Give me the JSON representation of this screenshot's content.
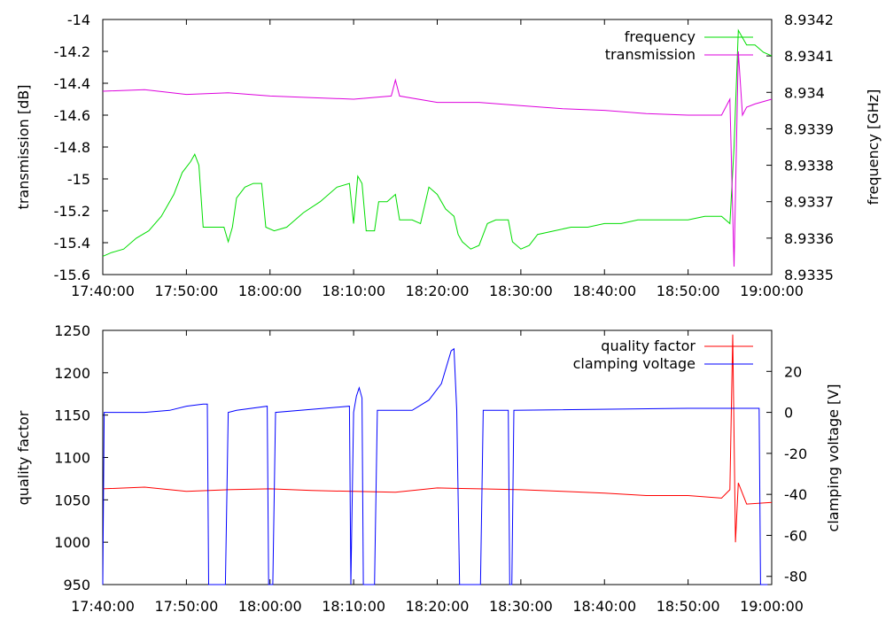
{
  "chart_data": [
    {
      "type": "line",
      "xlabel": "",
      "ylabel": "transmission [dB]",
      "y2label": "frequency [GHz]",
      "xlim": [
        "17:40:00",
        "19:00:00"
      ],
      "ylim": [
        -15.6,
        -14.0
      ],
      "y2lim": [
        8.9335,
        8.9342
      ],
      "x_ticks": [
        "17:40:00",
        "17:50:00",
        "18:00:00",
        "18:10:00",
        "18:20:00",
        "18:30:00",
        "18:40:00",
        "18:50:00",
        "19:00:00"
      ],
      "y_ticks": [
        "-14",
        "-14.2",
        "-14.4",
        "-14.6",
        "-14.8",
        "-15",
        "-15.2",
        "-15.4",
        "-15.6"
      ],
      "y2_ticks": [
        "8.9342",
        "8.9341",
        "8.934",
        "8.9339",
        "8.9338",
        "8.9337",
        "8.9336",
        "8.9335"
      ],
      "legend": "top-right",
      "grid": false,
      "series": [
        {
          "name": "frequency",
          "color": "#00dd00",
          "axis": "y2",
          "points": [
            [
              "17:40:00",
              8.93355
            ],
            [
              "17:41:00",
              8.93356
            ],
            [
              "17:42:30",
              8.93357
            ],
            [
              "17:44:00",
              8.9336
            ],
            [
              "17:45:30",
              8.93362
            ],
            [
              "17:47:00",
              8.93366
            ],
            [
              "17:48:30",
              8.93372
            ],
            [
              "17:49:30",
              8.93378
            ],
            [
              "17:50:30",
              8.93381
            ],
            [
              "17:51:00",
              8.93383
            ],
            [
              "17:51:30",
              8.9338
            ],
            [
              "17:52:00",
              8.93363
            ],
            [
              "17:53:00",
              8.93363
            ],
            [
              "17:54:30",
              8.93363
            ],
            [
              "17:55:00",
              8.93359
            ],
            [
              "17:55:30",
              8.93363
            ],
            [
              "17:56:00",
              8.93371
            ],
            [
              "17:57:00",
              8.93374
            ],
            [
              "17:58:00",
              8.93375
            ],
            [
              "17:59:00",
              8.93375
            ],
            [
              "17:59:30",
              8.93363
            ],
            [
              "18:00:30",
              8.93362
            ],
            [
              "18:02:00",
              8.93363
            ],
            [
              "18:04:00",
              8.93367
            ],
            [
              "18:06:00",
              8.9337
            ],
            [
              "18:08:00",
              8.93374
            ],
            [
              "18:09:30",
              8.93375
            ],
            [
              "18:10:00",
              8.93364
            ],
            [
              "18:10:30",
              8.93377
            ],
            [
              "18:11:00",
              8.93375
            ],
            [
              "18:11:30",
              8.93362
            ],
            [
              "18:12:30",
              8.93362
            ],
            [
              "18:13:00",
              8.9337
            ],
            [
              "18:14:00",
              8.9337
            ],
            [
              "18:15:00",
              8.93372
            ],
            [
              "18:15:30",
              8.93365
            ],
            [
              "18:17:00",
              8.93365
            ],
            [
              "18:18:00",
              8.93364
            ],
            [
              "18:19:00",
              8.93374
            ],
            [
              "18:20:00",
              8.93372
            ],
            [
              "18:21:00",
              8.93368
            ],
            [
              "18:22:00",
              8.93366
            ],
            [
              "18:22:30",
              8.93361
            ],
            [
              "18:23:00",
              8.93359
            ],
            [
              "18:24:00",
              8.93357
            ],
            [
              "18:25:00",
              8.93358
            ],
            [
              "18:26:00",
              8.93364
            ],
            [
              "18:27:00",
              8.93365
            ],
            [
              "18:28:30",
              8.93365
            ],
            [
              "18:29:00",
              8.93359
            ],
            [
              "18:30:00",
              8.93357
            ],
            [
              "18:31:00",
              8.93358
            ],
            [
              "18:32:00",
              8.93361
            ],
            [
              "18:34:00",
              8.93362
            ],
            [
              "18:36:00",
              8.93363
            ],
            [
              "18:38:00",
              8.93363
            ],
            [
              "18:40:00",
              8.93364
            ],
            [
              "18:42:00",
              8.93364
            ],
            [
              "18:44:00",
              8.93365
            ],
            [
              "18:46:00",
              8.93365
            ],
            [
              "18:48:00",
              8.93365
            ],
            [
              "18:50:00",
              8.93365
            ],
            [
              "18:52:00",
              8.93366
            ],
            [
              "18:54:00",
              8.93366
            ],
            [
              "18:55:00",
              8.93364
            ],
            [
              "18:55:30",
              8.93385
            ],
            [
              "18:56:00",
              8.93417
            ],
            [
              "18:57:00",
              8.93413
            ],
            [
              "18:58:00",
              8.93413
            ],
            [
              "18:59:00",
              8.93411
            ],
            [
              "19:00:00",
              8.9341
            ]
          ]
        },
        {
          "name": "transmission",
          "color": "#dd00dd",
          "axis": "y",
          "points": [
            [
              "17:40:00",
              -14.45
            ],
            [
              "17:45:00",
              -14.44
            ],
            [
              "17:50:00",
              -14.47
            ],
            [
              "17:55:00",
              -14.46
            ],
            [
              "18:00:00",
              -14.48
            ],
            [
              "18:05:00",
              -14.49
            ],
            [
              "18:10:00",
              -14.5
            ],
            [
              "18:14:30",
              -14.48
            ],
            [
              "18:15:00",
              -14.38
            ],
            [
              "18:15:30",
              -14.48
            ],
            [
              "18:20:00",
              -14.52
            ],
            [
              "18:25:00",
              -14.52
            ],
            [
              "18:30:00",
              -14.54
            ],
            [
              "18:35:00",
              -14.56
            ],
            [
              "18:40:00",
              -14.57
            ],
            [
              "18:45:00",
              -14.59
            ],
            [
              "18:50:00",
              -14.6
            ],
            [
              "18:54:00",
              -14.6
            ],
            [
              "18:55:00",
              -14.5
            ],
            [
              "18:55:30",
              -15.55
            ],
            [
              "18:56:00",
              -14.2
            ],
            [
              "18:56:30",
              -14.6
            ],
            [
              "18:57:00",
              -14.55
            ],
            [
              "18:58:00",
              -14.53
            ],
            [
              "19:00:00",
              -14.5
            ]
          ]
        }
      ]
    },
    {
      "type": "line",
      "xlabel": "",
      "ylabel": "quality factor",
      "y2label": "clamping voltage [V]",
      "xlim": [
        "17:40:00",
        "19:00:00"
      ],
      "ylim": [
        950,
        1250
      ],
      "y2lim": [
        -84,
        40
      ],
      "x_ticks": [
        "17:40:00",
        "17:50:00",
        "18:00:00",
        "18:10:00",
        "18:20:00",
        "18:30:00",
        "18:40:00",
        "18:50:00",
        "19:00:00"
      ],
      "y_ticks": [
        "1250",
        "1200",
        "1150",
        "1100",
        "1050",
        "1000",
        "950"
      ],
      "y2_ticks": [
        "20",
        "0",
        "-20",
        "-40",
        "-60",
        "-80"
      ],
      "legend": "top-right",
      "grid": false,
      "series": [
        {
          "name": "quality factor",
          "color": "#ff0000",
          "axis": "y",
          "points": [
            [
              "17:40:00",
              1063
            ],
            [
              "17:45:00",
              1065
            ],
            [
              "17:50:00",
              1060
            ],
            [
              "17:55:00",
              1062
            ],
            [
              "18:00:00",
              1063
            ],
            [
              "18:05:00",
              1061
            ],
            [
              "18:10:00",
              1060
            ],
            [
              "18:15:00",
              1059
            ],
            [
              "18:20:00",
              1064
            ],
            [
              "18:25:00",
              1063
            ],
            [
              "18:30:00",
              1062
            ],
            [
              "18:35:00",
              1060
            ],
            [
              "18:40:00",
              1058
            ],
            [
              "18:45:00",
              1055
            ],
            [
              "18:50:00",
              1055
            ],
            [
              "18:54:00",
              1052
            ],
            [
              "18:55:00",
              1062
            ],
            [
              "18:55:20",
              1245
            ],
            [
              "18:55:40",
              1000
            ],
            [
              "18:56:00",
              1070
            ],
            [
              "18:57:00",
              1045
            ],
            [
              "19:00:00",
              1047
            ]
          ]
        },
        {
          "name": "clamping voltage",
          "color": "#0000ff",
          "axis": "y2",
          "points": [
            [
              "17:40:00",
              -84
            ],
            [
              "17:40:10",
              0
            ],
            [
              "17:45:00",
              0
            ],
            [
              "17:48:00",
              1
            ],
            [
              "17:50:00",
              3
            ],
            [
              "17:52:00",
              4
            ],
            [
              "17:52:30",
              4
            ],
            [
              "17:52:40",
              -84
            ],
            [
              "17:54:40",
              -84
            ],
            [
              "17:55:00",
              0
            ],
            [
              "17:56:00",
              1
            ],
            [
              "17:59:40",
              3
            ],
            [
              "17:59:50",
              -84
            ],
            [
              "18:00:20",
              -84
            ],
            [
              "18:00:40",
              0
            ],
            [
              "18:09:30",
              3
            ],
            [
              "18:09:40",
              -84
            ],
            [
              "18:10:00",
              0
            ],
            [
              "18:10:20",
              8
            ],
            [
              "18:10:40",
              12
            ],
            [
              "18:11:00",
              7
            ],
            [
              "18:11:10",
              -84
            ],
            [
              "18:12:30",
              -84
            ],
            [
              "18:12:50",
              1
            ],
            [
              "18:17:00",
              1
            ],
            [
              "18:19:00",
              6
            ],
            [
              "18:20:30",
              14
            ],
            [
              "18:21:40",
              30
            ],
            [
              "18:22:00",
              31
            ],
            [
              "18:22:20",
              1
            ],
            [
              "18:22:40",
              -84
            ],
            [
              "18:25:10",
              -84
            ],
            [
              "18:25:30",
              1
            ],
            [
              "18:28:30",
              1
            ],
            [
              "18:28:40",
              -84
            ],
            [
              "18:28:55",
              -84
            ],
            [
              "18:29:10",
              1
            ],
            [
              "18:50:00",
              2
            ],
            [
              "18:55:00",
              2
            ],
            [
              "18:58:30",
              2
            ],
            [
              "18:58:40",
              -84
            ],
            [
              "18:59:30",
              -84
            ]
          ]
        }
      ]
    }
  ]
}
